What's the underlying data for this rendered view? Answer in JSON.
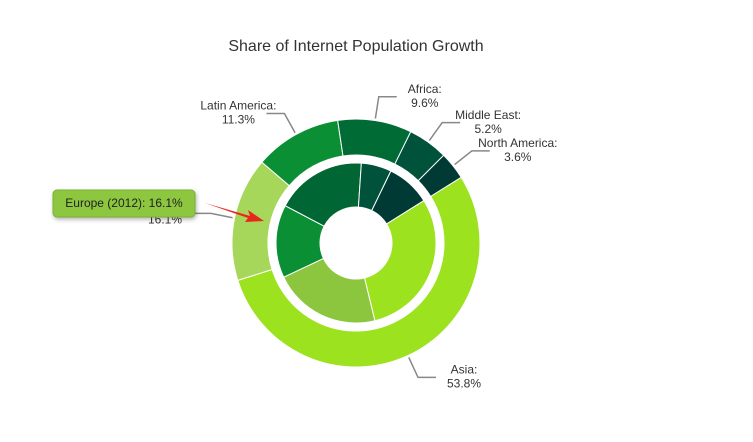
{
  "chart_data": {
    "type": "donut",
    "title": "Share of Internet Population Growth",
    "categories": [
      "Asia:",
      "Europe:",
      "Latin America:",
      "Africa:",
      "Middle East:",
      "North America:"
    ],
    "colors": [
      "#9de21f",
      "#a6d75b",
      "#0a8f35",
      "#006b34",
      "#00523a",
      "#003a35"
    ],
    "series": [
      {
        "values": [
          53.8,
          16.1,
          11.3,
          9.6,
          5.2,
          3.6
        ],
        "value_labels": [
          "53.8%",
          "16.1%",
          "11.3%",
          "9.6%",
          "5.2%",
          "3.6%"
        ]
      },
      {
        "values": [
          30,
          21.7,
          14.7,
          18.3,
          6.1,
          8.9
        ],
        "colors": [
          "#9de21f",
          "#8cc63f",
          "#0a8f35",
          "#006633",
          "#00523a",
          "#003a35"
        ]
      }
    ],
    "tooltip": "Europe (2012): 16.1%"
  }
}
